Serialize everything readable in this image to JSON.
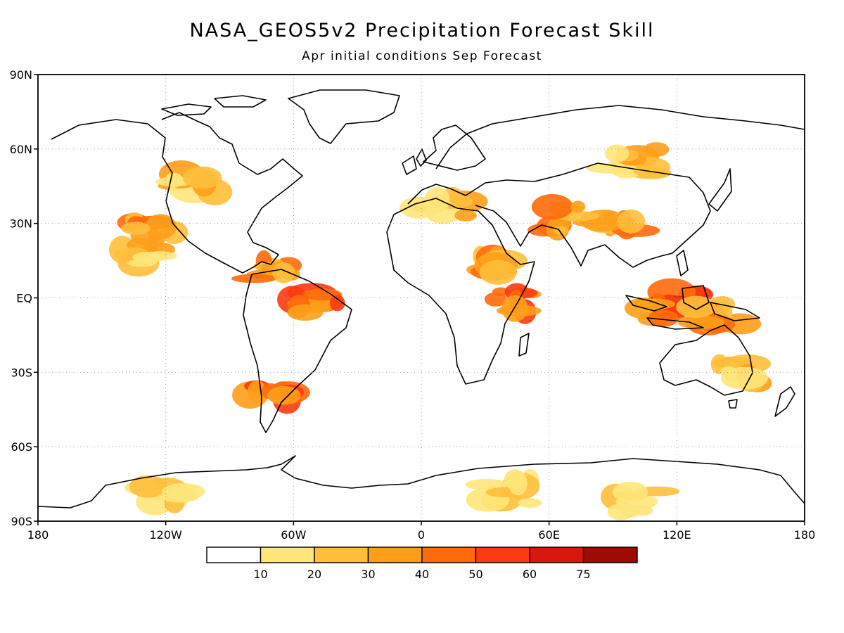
{
  "title": "NASA_GEOS5v2 Precipitation Forecast Skill",
  "subtitle": "Apr initial conditions  Sep Forecast",
  "lat_axis": {
    "labels": [
      "90N",
      "60N",
      "30N",
      "EQ",
      "30S",
      "60S",
      "90S"
    ],
    "values": [
      90,
      60,
      30,
      0,
      -30,
      -60,
      -90
    ]
  },
  "lon_axis": {
    "labels": [
      "180",
      "120W",
      "60W",
      "0",
      "60E",
      "120E",
      "180"
    ],
    "values": [
      -180,
      -120,
      -60,
      0,
      60,
      120,
      180
    ]
  },
  "colorbar": {
    "colors": [
      "#ffffff",
      "#ffe67a",
      "#ffbf3c",
      "#ff9f19",
      "#ff6a0a",
      "#fd3a0f",
      "#d8170d",
      "#a00a04"
    ],
    "ticks": [
      "10",
      "20",
      "30",
      "40",
      "50",
      "60",
      "75"
    ]
  },
  "skill_regions": [
    {
      "lon": 125,
      "lat": -2,
      "level": 6
    },
    {
      "lon": 115,
      "lat": -5,
      "level": 5
    },
    {
      "lon": 140,
      "lat": -7,
      "level": 4
    },
    {
      "lon": 45,
      "lat": -2,
      "level": 5
    },
    {
      "lon": 35,
      "lat": 15,
      "level": 4
    },
    {
      "lon": -50,
      "lat": -2,
      "level": 5
    },
    {
      "lon": -70,
      "lat": 10,
      "level": 4
    },
    {
      "lon": -72,
      "lat": -37,
      "level": 5
    },
    {
      "lon": -130,
      "lat": 18,
      "level": 3
    },
    {
      "lon": -105,
      "lat": 45,
      "level": 3
    },
    {
      "lon": -125,
      "lat": 28,
      "level": 4
    },
    {
      "lon": 90,
      "lat": 30,
      "level": 4
    },
    {
      "lon": 70,
      "lat": 32,
      "level": 4
    },
    {
      "lon": 10,
      "lat": 37,
      "level": 3
    },
    {
      "lon": 100,
      "lat": 55,
      "level": 3
    },
    {
      "lon": 150,
      "lat": -30,
      "level": 3
    },
    {
      "lon": 40,
      "lat": -78,
      "level": 2
    },
    {
      "lon": 100,
      "lat": -82,
      "level": 2
    },
    {
      "lon": -120,
      "lat": -78,
      "level": 2
    }
  ]
}
